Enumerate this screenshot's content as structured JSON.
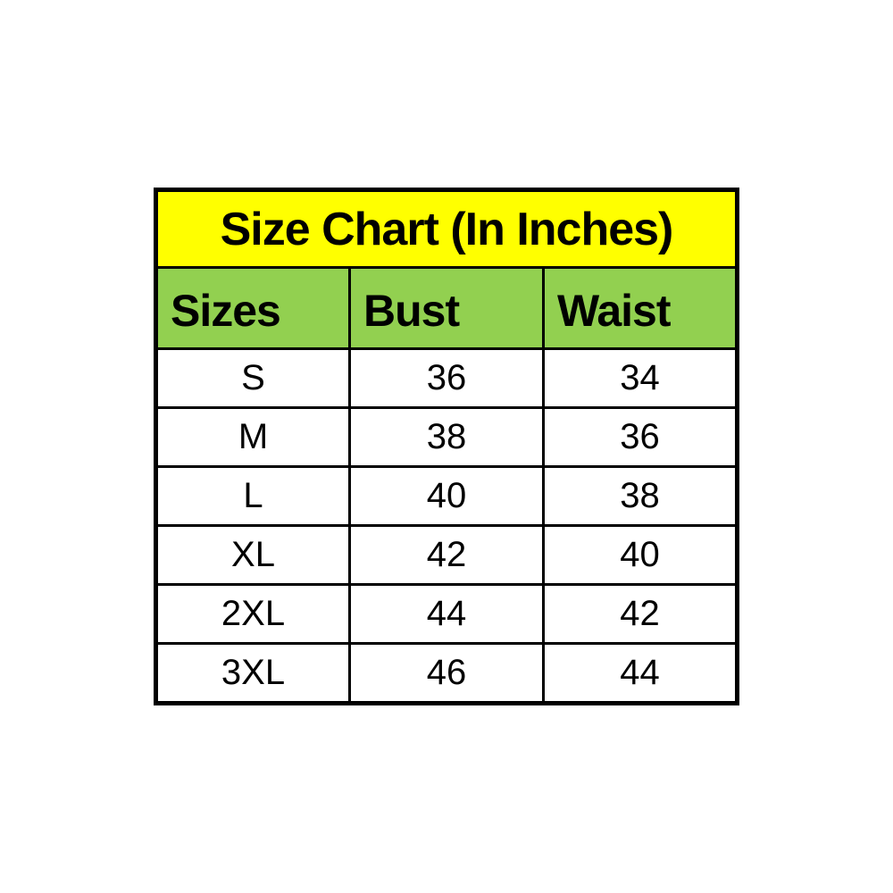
{
  "chart_data": {
    "type": "table",
    "title": "Size Chart (In Inches)",
    "columns": [
      "Sizes",
      "Bust",
      "Waist"
    ],
    "rows": [
      [
        "S",
        "36",
        "34"
      ],
      [
        "M",
        "38",
        "36"
      ],
      [
        "L",
        "40",
        "38"
      ],
      [
        "XL",
        "42",
        "40"
      ],
      [
        "2XL",
        "44",
        "42"
      ],
      [
        "3XL",
        "46",
        "44"
      ]
    ]
  },
  "colors": {
    "title_background": "#ffff00",
    "header_background": "#92d050",
    "cell_background": "#ffffff",
    "border": "#000000",
    "text": "#000000"
  }
}
